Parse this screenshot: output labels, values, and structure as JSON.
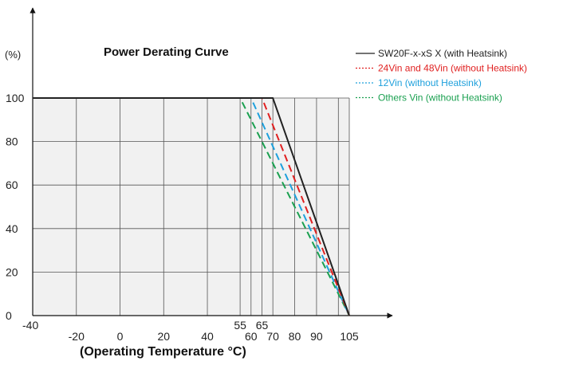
{
  "chart_data": {
    "type": "line",
    "title": "Power Derating Curve",
    "xlabel": "(Operating Temperature °C)",
    "ylabel": "(%)",
    "xlim": [
      -40,
      105
    ],
    "ylim": [
      0,
      100
    ],
    "x_ticks": [
      {
        "value": -40,
        "label": "-40"
      },
      {
        "value": -20,
        "label": "-20"
      },
      {
        "value": 0,
        "label": "0"
      },
      {
        "value": 20,
        "label": "20"
      },
      {
        "value": 40,
        "label": "40"
      },
      {
        "value": 55,
        "label": "55"
      },
      {
        "value": 60,
        "label": "60"
      },
      {
        "value": 65,
        "label": "65"
      },
      {
        "value": 70,
        "label": "70"
      },
      {
        "value": 80,
        "label": "80"
      },
      {
        "value": 90,
        "label": "90"
      },
      {
        "value": 105,
        "label": "105"
      }
    ],
    "x_gridlines": [
      -20,
      0,
      20,
      40,
      55,
      60,
      65,
      70,
      80,
      90,
      100
    ],
    "y_ticks": [
      {
        "value": 0,
        "label": "0"
      },
      {
        "value": 20,
        "label": "20"
      },
      {
        "value": 40,
        "label": "40"
      },
      {
        "value": 60,
        "label": "60"
      },
      {
        "value": 80,
        "label": "80"
      },
      {
        "value": 100,
        "label": "100"
      }
    ],
    "grid": true,
    "legend_position": "top-right",
    "series": [
      {
        "name": "SW20F-x-xS X (with Heatsink)",
        "color": "#222222",
        "style": "solid",
        "points": [
          [
            -40,
            100
          ],
          [
            70,
            100
          ],
          [
            105,
            0
          ]
        ]
      },
      {
        "name": "24Vin and 48Vin (without Heatsink)",
        "color": "#e02020",
        "style": "dashed",
        "points": [
          [
            -40,
            100
          ],
          [
            65,
            100
          ],
          [
            105,
            0
          ]
        ]
      },
      {
        "name": "12Vin (without Heatsink)",
        "color": "#1ea0dc",
        "style": "dashed",
        "points": [
          [
            -40,
            100
          ],
          [
            60,
            100
          ],
          [
            105,
            0
          ]
        ]
      },
      {
        "name": "Others Vin (without Heatsink)",
        "color": "#1aa050",
        "style": "dashed",
        "points": [
          [
            -40,
            100
          ],
          [
            55,
            100
          ],
          [
            105,
            0
          ]
        ]
      }
    ]
  }
}
